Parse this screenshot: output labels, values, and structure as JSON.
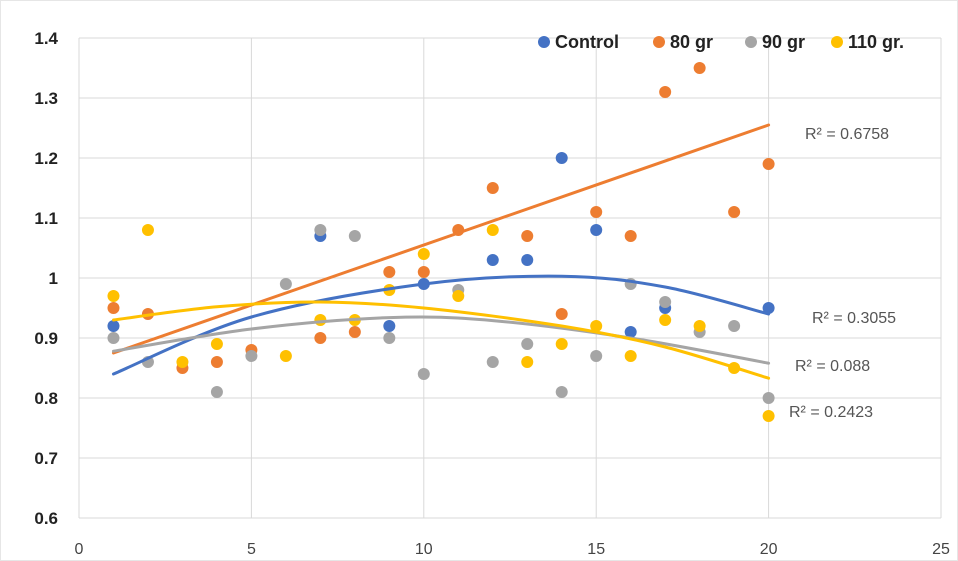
{
  "chart_data": {
    "type": "scatter",
    "title": "",
    "xlabel": "",
    "ylabel": "",
    "xlim": [
      0,
      25
    ],
    "ylim": [
      0.6,
      1.4
    ],
    "xticks": [
      0,
      5,
      10,
      15,
      20,
      25
    ],
    "yticks": [
      0.6,
      0.7,
      0.8,
      0.9,
      1.0,
      1.1,
      1.2,
      1.3,
      1.4
    ],
    "ytick_labels": [
      "0.6",
      "0.7",
      "0.8",
      "0.9",
      "1",
      "1.1",
      "1.2",
      "1.3",
      "1.4"
    ],
    "xtick_labels": [
      "0",
      "5",
      "10",
      "15",
      "20",
      "25"
    ],
    "grid": true,
    "legend_position": "top-right",
    "series": [
      {
        "name": "Control",
        "color": "#4472C4",
        "x": [
          1,
          7,
          9,
          10,
          12,
          13,
          14,
          15,
          16,
          17,
          20
        ],
        "y": [
          0.92,
          1.07,
          0.92,
          0.99,
          1.03,
          1.03,
          1.2,
          1.08,
          0.91,
          0.95,
          0.95
        ],
        "trendline": {
          "type": "poly2",
          "points": [
            [
              1,
              0.84
            ],
            [
              5,
              0.935
            ],
            [
              10,
              0.99
            ],
            [
              14,
              1.003
            ],
            [
              17,
              0.985
            ],
            [
              20,
              0.94
            ]
          ],
          "r2_label": "R² = 0.3055"
        }
      },
      {
        "name": "80 gr",
        "color": "#ED7D31",
        "x": [
          1,
          2,
          3,
          4,
          5,
          7,
          8,
          9,
          10,
          11,
          12,
          13,
          14,
          15,
          16,
          17,
          18,
          19,
          20
        ],
        "y": [
          0.95,
          0.94,
          0.85,
          0.86,
          0.88,
          0.9,
          0.91,
          1.01,
          1.01,
          1.08,
          1.15,
          1.07,
          0.94,
          1.11,
          1.07,
          1.31,
          1.35,
          1.11,
          1.19
        ],
        "trendline": {
          "type": "linear",
          "points": [
            [
              1,
              0.875
            ],
            [
              20,
              1.255
            ]
          ],
          "r2_label": "R² = 0.6758"
        }
      },
      {
        "name": "90 gr",
        "color": "#A5A5A5",
        "x": [
          1,
          2,
          4,
          5,
          6,
          7,
          8,
          9,
          10,
          11,
          12,
          13,
          14,
          15,
          16,
          17,
          18,
          19,
          20
        ],
        "y": [
          0.9,
          0.86,
          0.81,
          0.87,
          0.99,
          1.08,
          1.07,
          0.9,
          0.84,
          0.98,
          0.86,
          0.89,
          0.81,
          0.87,
          0.99,
          0.96,
          0.91,
          0.92,
          0.8
        ],
        "trendline": {
          "type": "poly2",
          "points": [
            [
              1,
              0.878
            ],
            [
              5,
              0.915
            ],
            [
              9,
              0.934
            ],
            [
              12,
              0.929
            ],
            [
              16,
              0.9
            ],
            [
              20,
              0.858
            ]
          ],
          "r2_label": "R² = 0.088"
        }
      },
      {
        "name": "110 gr.",
        "color": "#FFC000",
        "x": [
          1,
          2,
          3,
          4,
          6,
          7,
          8,
          9,
          10,
          11,
          12,
          13,
          14,
          15,
          16,
          17,
          18,
          19,
          20
        ],
        "y": [
          0.97,
          1.08,
          0.86,
          0.89,
          0.87,
          0.93,
          0.93,
          0.98,
          1.04,
          0.97,
          1.08,
          0.86,
          0.89,
          0.92,
          0.87,
          0.93,
          0.92,
          0.85,
          0.77
        ],
        "trendline": {
          "type": "poly2",
          "points": [
            [
              1,
              0.93
            ],
            [
              4,
              0.952
            ],
            [
              7,
              0.96
            ],
            [
              10,
              0.95
            ],
            [
              14,
              0.92
            ],
            [
              17,
              0.885
            ],
            [
              20,
              0.833
            ]
          ],
          "r2_label": "R² = 0.2423"
        }
      }
    ]
  }
}
